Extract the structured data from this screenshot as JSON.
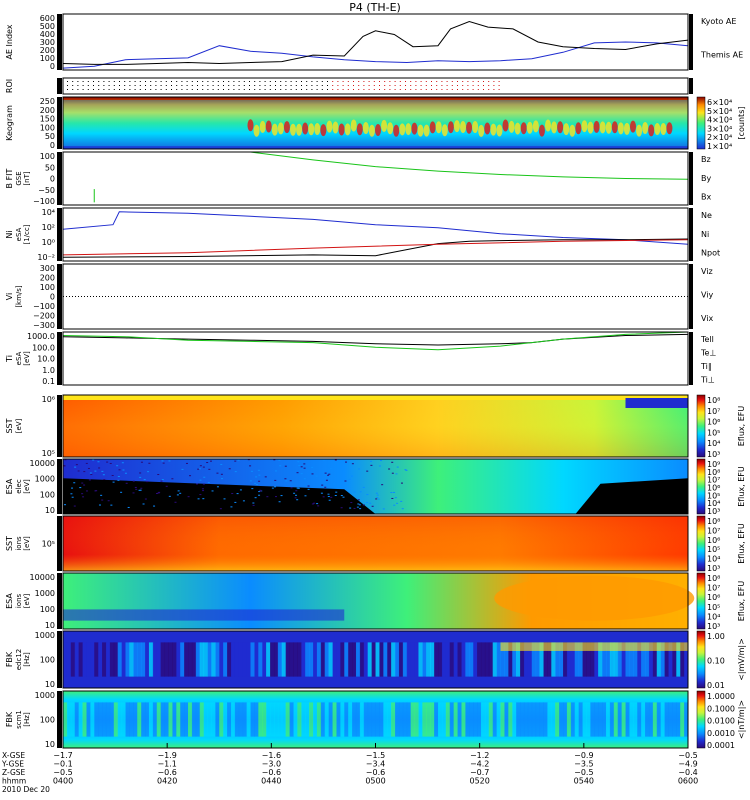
{
  "title": "P4 (TH-E)",
  "colors": {
    "frame": "#000000",
    "black": "#000000",
    "blue": "#1f2ccf",
    "red": "#d21414",
    "green": "#19c419",
    "spec_scale": [
      "#2a0a7a",
      "#1f2ccf",
      "#0a8cff",
      "#00d8ff",
      "#3ef07a",
      "#c8f53a",
      "#ffe41a",
      "#ff8a00",
      "#e81010",
      "#8a0000"
    ]
  },
  "chart_data": [
    {
      "panel": "ae",
      "type": "line",
      "ylabel": "AE Index",
      "yticks": [
        "600",
        "500",
        "400",
        "300",
        "200",
        "100",
        "0"
      ],
      "ylim": [
        0,
        600
      ],
      "legend": [
        "Kyoto AE",
        "Themis AE"
      ],
      "series": [
        {
          "name": "Kyoto AE",
          "color": "blue",
          "x": [
            0,
            0.05,
            0.1,
            0.15,
            0.2,
            0.25,
            0.3,
            0.35,
            0.4,
            0.45,
            0.5,
            0.55,
            0.6,
            0.65,
            0.7,
            0.75,
            0.8,
            0.85,
            0.9,
            0.95,
            1.0
          ],
          "y": [
            20,
            40,
            110,
            120,
            130,
            260,
            200,
            180,
            140,
            110,
            90,
            80,
            100,
            90,
            100,
            120,
            190,
            290,
            300,
            290,
            260
          ]
        },
        {
          "name": "Themis AE",
          "color": "black",
          "x": [
            0,
            0.05,
            0.1,
            0.15,
            0.2,
            0.25,
            0.3,
            0.35,
            0.4,
            0.45,
            0.48,
            0.5,
            0.53,
            0.56,
            0.6,
            0.62,
            0.65,
            0.68,
            0.72,
            0.76,
            0.8,
            0.85,
            0.9,
            0.95,
            1.0
          ],
          "y": [
            70,
            60,
            60,
            70,
            80,
            70,
            80,
            90,
            160,
            150,
            360,
            420,
            380,
            250,
            260,
            440,
            520,
            460,
            440,
            300,
            250,
            230,
            220,
            280,
            320
          ]
        }
      ]
    },
    {
      "panel": "roi",
      "type": "scatter",
      "ylabel": "ROI"
    },
    {
      "panel": "keogram",
      "type": "heatmap",
      "ylabel": "Keogram",
      "yticks": [
        "250",
        "200",
        "150",
        "100",
        "50",
        "0"
      ],
      "ylim": [
        0,
        250
      ],
      "colorbar_ticks": [
        "6×10⁴",
        "5×10⁴",
        "4×10⁴",
        "3×10⁴",
        "2×10⁴",
        "1×10⁴"
      ],
      "colorbar_label": "[counts]"
    },
    {
      "panel": "bfit",
      "type": "line",
      "ylabel": "B FIT",
      "sublabels": [
        "GSE",
        "[nT]"
      ],
      "yticks": [
        "100",
        "50",
        "0",
        "−50",
        "−100"
      ],
      "ylim": [
        -100,
        100
      ],
      "legend": [
        "Bz",
        "By",
        "Bx"
      ],
      "series": [
        {
          "name": "By",
          "color": "green",
          "x": [
            0.3,
            0.4,
            0.5,
            0.6,
            0.7,
            0.8,
            0.9,
            1.0
          ],
          "y": [
            100,
            70,
            45,
            28,
            15,
            6,
            0,
            -3
          ]
        }
      ]
    },
    {
      "panel": "density",
      "type": "line",
      "ylabel": "Ni",
      "sublabels": [
        "eSA",
        "[1/cc]"
      ],
      "yticks": [
        "10⁴",
        "10²",
        "10⁰",
        "10⁻²"
      ],
      "legend": [
        "Ne",
        "Ni",
        "Npot"
      ],
      "series": [
        {
          "name": "Ne",
          "color": "blue",
          "x": [
            0,
            0.08,
            0.09,
            0.2,
            0.3,
            0.4,
            0.5,
            0.6,
            0.7,
            0.8,
            0.9,
            1.0
          ],
          "y": [
            2.2,
            2.8,
            4.5,
            4.3,
            3.9,
            3.5,
            2.8,
            2.4,
            1.6,
            1.1,
            0.8,
            0.2
          ]
        },
        {
          "name": "Ni",
          "color": "black",
          "x": [
            0,
            0.2,
            0.4,
            0.5,
            0.55,
            0.6,
            0.65,
            0.7,
            0.8,
            0.9,
            1.0
          ],
          "y": [
            -1.5,
            -1.4,
            -1.2,
            -1.3,
            -0.5,
            0.3,
            0.6,
            0.7,
            0.8,
            0.8,
            0.9
          ]
        },
        {
          "name": "Npot",
          "color": "red",
          "x": [
            0,
            0.2,
            0.4,
            0.6,
            0.8,
            1.0
          ],
          "y": [
            -1.2,
            -0.9,
            -0.3,
            0.2,
            0.6,
            0.8
          ]
        }
      ]
    },
    {
      "panel": "velocity",
      "type": "line",
      "ylabel": "Vi",
      "sublabels": [
        "[km/s]"
      ],
      "yticks": [
        "300",
        "200",
        "100",
        "0",
        "−100",
        "−200",
        "−300"
      ],
      "ylim": [
        -300,
        300
      ],
      "legend": [
        "Viz",
        "Viy",
        "Vix"
      ]
    },
    {
      "panel": "temperature",
      "type": "line",
      "ylabel": "Ti",
      "sublabels": [
        "eSA",
        "[eV]"
      ],
      "yticks": [
        "1000.0",
        "100.0",
        "10.0",
        "1.0",
        "0.1"
      ],
      "legend": [
        "Tell",
        "Te⊥",
        "Ti∥",
        "Ti⊥"
      ],
      "series": [
        {
          "name": "Tell",
          "color": "black",
          "x": [
            0,
            0.1,
            0.2,
            0.3,
            0.4,
            0.5,
            0.6,
            0.7,
            0.75,
            0.8,
            0.9,
            1.0
          ],
          "y": [
            3.1,
            3.0,
            2.9,
            2.8,
            2.7,
            2.5,
            2.4,
            2.5,
            2.6,
            2.9,
            3.2,
            3.3
          ]
        },
        {
          "name": "Ti∥",
          "color": "green",
          "x": [
            0,
            0.1,
            0.2,
            0.3,
            0.4,
            0.5,
            0.6,
            0.7,
            0.8,
            0.9,
            1.0
          ],
          "y": [
            3.2,
            3.1,
            2.8,
            2.7,
            2.6,
            2.2,
            2.0,
            2.3,
            2.9,
            3.3,
            3.5
          ]
        }
      ]
    },
    {
      "panel": "sst_e",
      "type": "heatmap",
      "ylabel": "SST",
      "sublabels": [
        "[eV]"
      ],
      "yticks": [
        "10⁶",
        "10⁵"
      ],
      "colorbar_ticks": [
        "10⁸",
        "10⁷",
        "10⁶",
        "10⁵",
        "10⁴",
        "10³"
      ],
      "colorbar_label": "Eflux, EFU"
    },
    {
      "panel": "esa_e",
      "type": "heatmap",
      "ylabel": "ESA",
      "sublabels": [
        "elec",
        "[eV]"
      ],
      "yticks": [
        "10000",
        "1000",
        "100",
        "10"
      ],
      "colorbar_ticks": [
        "10⁹",
        "10⁸",
        "10⁷",
        "10⁶",
        "10⁵",
        "10⁴",
        "10³"
      ],
      "colorbar_label": "Eflux, EFU"
    },
    {
      "panel": "sst_i",
      "type": "heatmap",
      "ylabel": "SST",
      "sublabels": [
        "ions",
        "[eV]"
      ],
      "yticks": [
        "10⁵"
      ],
      "colorbar_ticks": [
        "10⁸",
        "10⁷",
        "10⁶",
        "10⁵",
        "10⁴",
        "10³"
      ],
      "colorbar_label": "Eflux, EFU"
    },
    {
      "panel": "esa_i",
      "type": "heatmap",
      "ylabel": "ESA",
      "sublabels": [
        "ions",
        "[eV]"
      ],
      "yticks": [
        "10000",
        "1000",
        "100",
        "10"
      ],
      "colorbar_ticks": [
        "10⁸",
        "10⁷",
        "10⁶",
        "10⁵",
        "10⁴",
        "10³"
      ],
      "colorbar_label": "Eflux, EFU"
    },
    {
      "panel": "fbk1",
      "type": "heatmap",
      "ylabel": "FBK",
      "sublabels": [
        "edc12",
        "[Hz]"
      ],
      "yticks": [
        "1000",
        "100",
        "10"
      ],
      "colorbar_ticks": [
        "1.00",
        "0.10",
        "0.01"
      ],
      "colorbar_label": "<|mV/m|>"
    },
    {
      "panel": "fbk2",
      "type": "heatmap",
      "ylabel": "FBK",
      "sublabels": [
        "scm1",
        "[Hz]"
      ],
      "yticks": [
        "1000",
        "100",
        "10"
      ],
      "colorbar_ticks": [
        "1.0000",
        "0.1000",
        "0.0100",
        "0.0010",
        "0.0001"
      ],
      "colorbar_label": "<|nT/m|>"
    }
  ],
  "x_axis": {
    "row_labels": [
      "X-GSE",
      "Y-GSE",
      "Z-GSE",
      "hhmm",
      "2010 Dec 20"
    ],
    "ticks": [
      {
        "values": [
          "−1.7",
          "−0.1",
          "−0.5",
          "0400"
        ]
      },
      {
        "values": [
          "−1.9",
          "−1.1",
          "−0.6",
          "0420"
        ]
      },
      {
        "values": [
          "−1.6",
          "−3.0",
          "−0.6",
          "0440"
        ]
      },
      {
        "values": [
          "−1.5",
          "−3.4",
          "−0.6",
          "0500"
        ]
      },
      {
        "values": [
          "−1.2",
          "−4.2",
          "−0.7",
          "0520"
        ]
      },
      {
        "values": [
          "−0.9",
          "−3.5",
          "−0.5",
          "0540"
        ]
      },
      {
        "values": [
          "−0.5",
          "−4.9",
          "−0.4",
          "0600"
        ]
      }
    ]
  }
}
